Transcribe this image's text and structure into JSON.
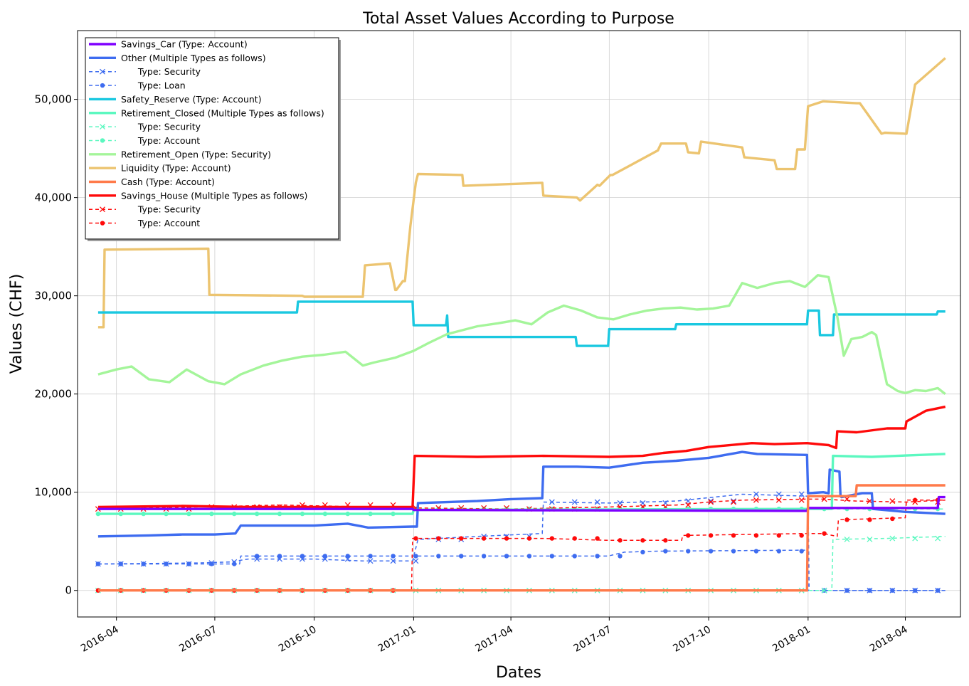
{
  "chart_data": {
    "type": "line",
    "title": "Total Asset Values According to Purpose",
    "xlabel": "Dates",
    "ylabel": "Values (CHF)",
    "xlim": [
      "2016-02-25",
      "2018-05-22"
    ],
    "ylim": [
      -2700,
      57000
    ],
    "grid": true,
    "legend_position": "top-left",
    "x_ticks": [
      "2016-04-01",
      "2016-07-01",
      "2016-10-01",
      "2017-01-01",
      "2017-04-01",
      "2017-07-01",
      "2017-10-01",
      "2018-01-01",
      "2018-04-01"
    ],
    "x_tick_labels": [
      "2016-04",
      "2016-07",
      "2016-10",
      "2017-01",
      "2017-04",
      "2017-07",
      "2017-10",
      "2018-01",
      "2018-04"
    ],
    "y_ticks": [
      0,
      10000,
      20000,
      30000,
      40000,
      50000
    ],
    "y_tick_labels": [
      "0",
      "10,000",
      "20,000",
      "30,000",
      "40,000",
      "50,000"
    ],
    "legend": [
      {
        "label": "Savings_Car (Type: Account)",
        "color": "#7f00ff",
        "style": "solid"
      },
      {
        "label": "Other (Multiple Types as follows)",
        "color": "#3e6cf0",
        "style": "solid"
      },
      {
        "label": "      Type: Security",
        "color": "#3e6cf0",
        "style": "dashed",
        "marker": "x"
      },
      {
        "label": "      Type: Loan",
        "color": "#3e6cf0",
        "style": "dashed",
        "marker": "o"
      },
      {
        "label": "Safety_Reserve (Type: Account)",
        "color": "#1ac8e0",
        "style": "solid"
      },
      {
        "label": "Retirement_Closed (Multiple Types as follows)",
        "color": "#5cf8c0",
        "style": "solid"
      },
      {
        "label": "      Type: Security",
        "color": "#5cf8c0",
        "style": "dashed",
        "marker": "x"
      },
      {
        "label": "      Type: Account",
        "color": "#5cf8c0",
        "style": "dashed",
        "marker": "o"
      },
      {
        "label": "Retirement_Open (Type: Security)",
        "color": "#a4f59a",
        "style": "solid"
      },
      {
        "label": "Liquidity (Type: Account)",
        "color": "#ecc470",
        "style": "solid"
      },
      {
        "label": "Cash (Type: Account)",
        "color": "#ff7a4a",
        "style": "solid"
      },
      {
        "label": "Savings_House (Multiple Types as follows)",
        "color": "#ff0a0a",
        "style": "solid"
      },
      {
        "label": "      Type: Security",
        "color": "#ff0a0a",
        "style": "dashed",
        "marker": "x"
      },
      {
        "label": "      Type: Account",
        "color": "#ff0a0a",
        "style": "dashed",
        "marker": "o"
      }
    ],
    "series": [
      {
        "name": "Liquidity (Type: Account)",
        "color": "#ecc470",
        "style": "solid",
        "x": [
          "2016-03-15",
          "2016-03-20",
          "2016-03-21",
          "2016-06-25",
          "2016-06-26",
          "2016-09-20",
          "2016-09-22",
          "2016-11-15",
          "2016-11-17",
          "2016-12-10",
          "2016-12-15",
          "2016-12-16",
          "2016-12-22",
          "2016-12-24",
          "2016-12-29",
          "2017-01-03",
          "2017-01-05",
          "2017-02-15",
          "2017-02-16",
          "2017-04-30",
          "2017-05-01",
          "2017-06-01",
          "2017-06-04",
          "2017-06-20",
          "2017-06-22",
          "2017-07-02",
          "2017-07-04",
          "2017-08-15",
          "2017-08-18",
          "2017-09-10",
          "2017-09-12",
          "2017-09-22",
          "2017-09-24",
          "2017-11-01",
          "2017-11-03",
          "2017-12-01",
          "2017-12-03",
          "2017-12-20",
          "2017-12-22",
          "2017-12-29",
          "2018-01-01",
          "2018-01-15",
          "2018-02-15",
          "2018-02-18",
          "2018-03-10",
          "2018-03-13",
          "2018-04-01",
          "2018-04-02",
          "2018-04-10",
          "2018-04-11",
          "2018-05-08"
        ],
        "y": [
          26800,
          26800,
          34700,
          34800,
          30100,
          30000,
          29900,
          29900,
          33100,
          33300,
          30600,
          30600,
          31500,
          31500,
          37100,
          41500,
          42400,
          42300,
          41200,
          41500,
          40200,
          40000,
          39700,
          41300,
          41200,
          42300,
          42300,
          44800,
          45500,
          45500,
          44600,
          44500,
          45700,
          45100,
          44100,
          43800,
          42900,
          42900,
          44900,
          44900,
          49300,
          49800,
          49600,
          49600,
          46500,
          46600,
          46500,
          46500,
          51500,
          51600,
          54200
        ]
      },
      {
        "name": "Safety_Reserve (Type: Account)",
        "color": "#1ac8e0",
        "style": "solid",
        "x": [
          "2016-03-15",
          "2016-09-15",
          "2016-09-16",
          "2016-12-31",
          "2017-01-01",
          "2017-01-31",
          "2017-02-01",
          "2017-02-02",
          "2017-05-31",
          "2017-06-01",
          "2017-06-30",
          "2017-07-01",
          "2017-08-31",
          "2017-09-01",
          "2017-12-31",
          "2018-01-01",
          "2018-01-11",
          "2018-01-12",
          "2018-01-24",
          "2018-01-25",
          "2018-04-30",
          "2018-05-01",
          "2018-05-08"
        ],
        "y": [
          28300,
          28300,
          29400,
          29400,
          27000,
          27000,
          28000,
          25800,
          25800,
          24900,
          24900,
          26600,
          26600,
          27100,
          27100,
          28500,
          28500,
          26000,
          26000,
          28100,
          28100,
          28400,
          28400
        ]
      },
      {
        "name": "Retirement_Open (Type: Security)",
        "color": "#a4f59a",
        "style": "solid",
        "x": [
          "2016-03-15",
          "2016-04-01",
          "2016-04-15",
          "2016-05-01",
          "2016-05-20",
          "2016-06-05",
          "2016-06-25",
          "2016-07-10",
          "2016-07-25",
          "2016-08-15",
          "2016-09-01",
          "2016-09-20",
          "2016-10-10",
          "2016-10-30",
          "2016-11-15",
          "2016-11-25",
          "2016-12-15",
          "2017-01-01",
          "2017-01-15",
          "2017-02-01",
          "2017-02-15",
          "2017-03-01",
          "2017-03-20",
          "2017-04-05",
          "2017-04-20",
          "2017-05-05",
          "2017-05-20",
          "2017-06-05",
          "2017-06-20",
          "2017-07-05",
          "2017-07-20",
          "2017-08-05",
          "2017-08-20",
          "2017-09-05",
          "2017-09-20",
          "2017-10-05",
          "2017-10-20",
          "2017-11-01",
          "2017-11-15",
          "2017-12-01",
          "2017-12-15",
          "2017-12-29",
          "2018-01-10",
          "2018-01-20",
          "2018-01-28",
          "2018-02-03",
          "2018-02-10",
          "2018-02-20",
          "2018-03-01",
          "2018-03-05",
          "2018-03-15",
          "2018-03-25",
          "2018-04-01",
          "2018-04-10",
          "2018-04-20",
          "2018-05-01",
          "2018-05-08"
        ],
        "y": [
          22000,
          22500,
          22800,
          21500,
          21200,
          22500,
          21300,
          21000,
          22000,
          22900,
          23400,
          23800,
          24000,
          24300,
          22900,
          23200,
          23700,
          24400,
          25200,
          26100,
          26500,
          26900,
          27200,
          27500,
          27100,
          28300,
          29000,
          28500,
          27800,
          27600,
          28100,
          28500,
          28700,
          28800,
          28600,
          28700,
          29000,
          31300,
          30800,
          31300,
          31500,
          30900,
          32100,
          31900,
          27900,
          23900,
          25600,
          25800,
          26300,
          26000,
          21000,
          20300,
          20100,
          20400,
          20300,
          20600,
          20000
        ]
      },
      {
        "name": "Savings_House (Multiple Types as follows)",
        "color": "#ff0a0a",
        "style": "solid",
        "x": [
          "2016-03-15",
          "2016-06-01",
          "2016-08-01",
          "2016-10-01",
          "2016-12-30",
          "2016-12-31",
          "2017-01-02",
          "2017-03-01",
          "2017-05-01",
          "2017-07-01",
          "2017-08-01",
          "2017-08-20",
          "2017-09-10",
          "2017-10-01",
          "2017-11-10",
          "2017-12-01",
          "2017-12-31",
          "2018-01-20",
          "2018-01-27",
          "2018-01-28",
          "2018-02-15",
          "2018-03-15",
          "2018-04-01",
          "2018-04-02",
          "2018-04-20",
          "2018-05-08"
        ],
        "y": [
          8500,
          8600,
          8500,
          8500,
          8500,
          8500,
          13700,
          13600,
          13700,
          13600,
          13700,
          14000,
          14200,
          14600,
          15000,
          14900,
          15000,
          14800,
          14500,
          16200,
          16100,
          16500,
          16500,
          17200,
          18300,
          18700
        ]
      },
      {
        "name": "Other (Multiple Types as follows)",
        "color": "#3e6cf0",
        "style": "solid",
        "x": [
          "2016-03-15",
          "2016-05-01",
          "2016-06-01",
          "2016-07-01",
          "2016-07-20",
          "2016-07-25",
          "2016-10-01",
          "2016-11-01",
          "2016-11-20",
          "2016-12-31",
          "2017-01-04",
          "2017-01-05",
          "2017-03-01",
          "2017-04-01",
          "2017-04-30",
          "2017-05-01",
          "2017-06-01",
          "2017-07-01",
          "2017-08-01",
          "2017-09-01",
          "2017-10-01",
          "2017-11-01",
          "2017-11-15",
          "2017-12-31",
          "2018-01-01",
          "2018-01-15",
          "2018-01-20",
          "2018-01-21",
          "2018-01-30",
          "2018-01-31",
          "2018-02-01",
          "2018-02-20",
          "2018-03-01",
          "2018-03-02",
          "2018-04-01",
          "2018-05-08"
        ],
        "y": [
          5500,
          5600,
          5700,
          5700,
          5800,
          6600,
          6600,
          6800,
          6400,
          6500,
          6500,
          8900,
          9100,
          9300,
          9400,
          12600,
          12600,
          12500,
          13000,
          13200,
          13500,
          14100,
          13900,
          13800,
          9900,
          10000,
          9900,
          12300,
          12100,
          9600,
          9500,
          9900,
          9900,
          8300,
          8000,
          7800
        ]
      },
      {
        "name": "Retirement_Closed (Multiple Types as follows)",
        "color": "#5cf8c0",
        "style": "solid",
        "x": [
          "2016-03-15",
          "2016-12-31",
          "2017-01-01",
          "2017-12-31",
          "2018-01-01",
          "2018-01-23",
          "2018-01-24",
          "2018-03-01",
          "2018-05-08"
        ],
        "y": [
          7800,
          7800,
          8200,
          8300,
          8300,
          8300,
          13700,
          13600,
          13900
        ]
      },
      {
        "name": "Savings_Car (Type: Account)",
        "color": "#7f00ff",
        "style": "solid",
        "x": [
          "2016-03-15",
          "2016-12-31",
          "2017-01-01",
          "2017-12-31",
          "2018-01-01",
          "2018-05-01",
          "2018-05-02",
          "2018-05-08"
        ],
        "y": [
          8300,
          8300,
          8200,
          8100,
          8400,
          8400,
          9500,
          9500
        ]
      },
      {
        "name": "Cash (Type: Account)",
        "color": "#ff7a4a",
        "style": "solid",
        "x": [
          "2016-03-15",
          "2017-12-31",
          "2018-01-01",
          "2018-02-14",
          "2018-02-15",
          "2018-05-08"
        ],
        "y": [
          0,
          0,
          9600,
          9600,
          10700,
          10700
        ]
      },
      {
        "name": "Other / Type: Security",
        "color": "#3e6cf0",
        "style": "dashed",
        "marker": "x",
        "x": [
          "2016-03-15",
          "2016-06-15",
          "2016-07-15",
          "2016-08-01",
          "2016-10-01",
          "2016-11-15",
          "2016-12-31",
          "2017-01-05",
          "2017-03-01",
          "2017-04-30",
          "2017-05-01",
          "2017-07-01",
          "2017-09-01",
          "2017-11-01",
          "2017-12-31",
          "2018-01-01",
          "2018-01-02",
          "2018-05-08"
        ],
        "y": [
          2700,
          2800,
          2900,
          3200,
          3200,
          3000,
          3000,
          5200,
          5500,
          5800,
          9000,
          8900,
          9100,
          9800,
          9600,
          9600,
          0,
          0
        ]
      },
      {
        "name": "Other / Type: Loan",
        "color": "#3e6cf0",
        "style": "dashed",
        "marker": "o",
        "x": [
          "2016-03-15",
          "2016-07-24",
          "2016-07-25",
          "2017-06-30",
          "2017-07-15",
          "2017-08-15",
          "2017-12-31",
          "2018-01-01",
          "2018-05-08"
        ],
        "y": [
          2700,
          2700,
          3500,
          3500,
          3900,
          4000,
          4100,
          0,
          0
        ]
      },
      {
        "name": "Retirement_Closed / Type: Security",
        "color": "#5cf8c0",
        "style": "dashed",
        "marker": "x",
        "x": [
          "2016-03-15",
          "2018-01-23",
          "2018-01-24",
          "2018-03-15",
          "2018-05-08"
        ],
        "y": [
          0,
          0,
          5200,
          5300,
          5500
        ]
      },
      {
        "name": "Retirement_Closed / Type: Account",
        "color": "#5cf8c0",
        "style": "dashed",
        "marker": "o",
        "x": [
          "2016-03-15",
          "2016-12-31",
          "2017-01-01",
          "2018-05-08"
        ],
        "y": [
          7800,
          7800,
          8300,
          8300
        ]
      },
      {
        "name": "Savings_House / Type: Security",
        "color": "#ff0a0a",
        "style": "dashed",
        "marker": "x",
        "x": [
          "2016-03-15",
          "2016-06-15",
          "2016-09-01",
          "2016-12-31",
          "2017-04-01",
          "2017-07-01",
          "2017-09-01",
          "2017-10-01",
          "2017-11-01",
          "2017-12-31",
          "2018-01-15",
          "2018-02-15",
          "2018-04-01",
          "2018-05-08"
        ],
        "y": [
          8300,
          8500,
          8700,
          8400,
          8300,
          8500,
          8700,
          9000,
          9200,
          9300,
          9300,
          9100,
          9000,
          9200
        ]
      },
      {
        "name": "Savings_House / Type: Account",
        "color": "#ff0a0a",
        "style": "dashed",
        "marker": "o",
        "x": [
          "2016-03-15",
          "2016-12-30",
          "2016-12-31",
          "2017-03-01",
          "2017-05-01",
          "2017-07-01",
          "2017-09-06",
          "2017-09-07",
          "2017-12-31",
          "2018-01-15",
          "2018-01-28",
          "2018-01-29",
          "2018-03-01",
          "2018-04-01",
          "2018-04-02",
          "2018-05-08"
        ],
        "y": [
          0,
          0,
          5300,
          5300,
          5300,
          5100,
          5100,
          5600,
          5800,
          5800,
          5500,
          7200,
          7300,
          7400,
          9200,
          9200
        ]
      }
    ]
  }
}
